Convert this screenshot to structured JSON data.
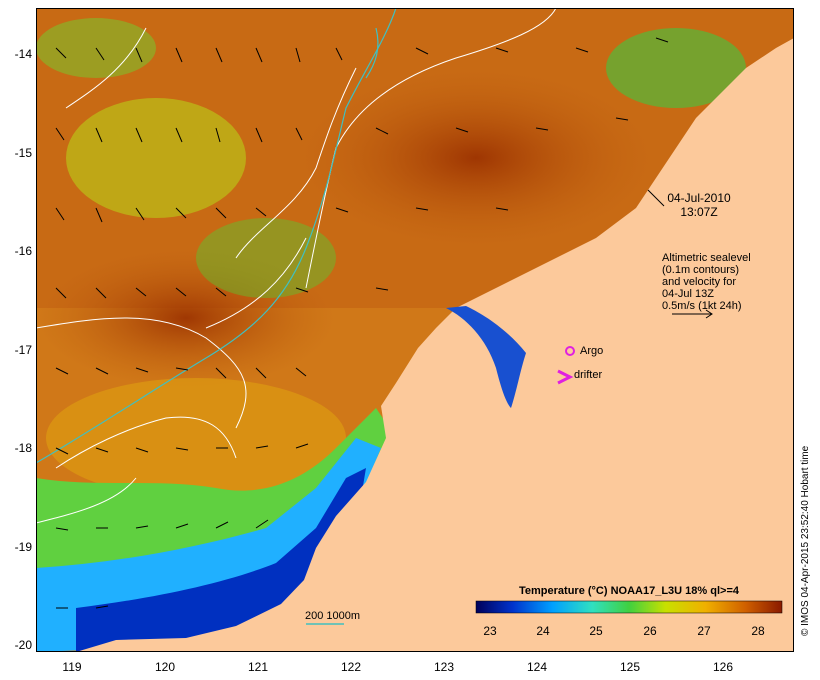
{
  "map": {
    "lat_ticks": [
      "-14",
      "-15",
      "-16",
      "-17",
      "-18",
      "-19",
      "-20"
    ],
    "lon_ticks": [
      "119",
      "120",
      "121",
      "122",
      "123",
      "124",
      "125",
      "126"
    ],
    "date": "04-Jul-2010",
    "time": "13:07Z",
    "altimetry_lines": [
      "Altimetric sealevel",
      "(0.1m contours)",
      "and velocity for",
      "04-Jul 13Z",
      "0.5m/s (1kt 24h)"
    ],
    "argo_label": "Argo",
    "drifter_label": "drifter",
    "scale_label": "200  1000m",
    "colorbar_title": "Temperature (°C) NOAA17_L3U 18% ql>=4",
    "colorbar_ticks": [
      "23",
      "24",
      "25",
      "26",
      "27",
      "28"
    ],
    "credit": "© IMOS 04-Apr-2015 23:52:40 Hobart time"
  },
  "colors": {
    "land": "#fcc99b",
    "contour": "#ffffff",
    "isobath": "#40c0c0",
    "argo": "#e020e0",
    "drifter": "#e020e0",
    "colorbar": [
      "#00005a",
      "#0033cc",
      "#00a0ff",
      "#30e0c0",
      "#40d040",
      "#c8e000",
      "#f0b000",
      "#d06000",
      "#8a1a00"
    ]
  }
}
